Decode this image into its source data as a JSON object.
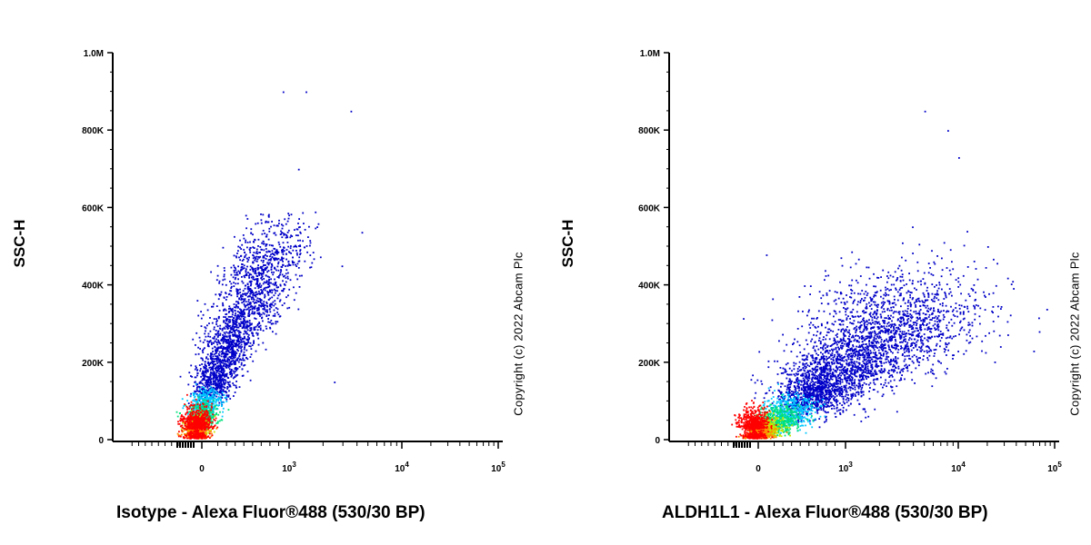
{
  "chart_data": [
    {
      "type": "scatter",
      "subtype": "flow-cytometry-density-dot-plot",
      "xlabel": "Isotype - Alexa Fluor®488 (530/30 BP)",
      "ylabel": "SSC-H",
      "copyright": "Copyright (c) 2022 Abcam Plc",
      "x_scale": "biexponential",
      "y_ticks": [
        "0",
        "200K",
        "400K",
        "600K",
        "800K",
        "1.0M"
      ],
      "x_ticks": [
        "0",
        "10^3",
        "10^4",
        "10^5"
      ],
      "ylim": [
        0,
        1000000
      ],
      "colormap": [
        "#0000c8",
        "#00c8ff",
        "#00e07a",
        "#c8e600",
        "#ff8c00",
        "#ff0000"
      ],
      "population": {
        "center_x": 0,
        "center_y": 40000,
        "spread": "narrow, extends diagonally to ~10^3 at ~600K",
        "outliers": [
          [
            600,
            900000
          ],
          [
            1400,
            900000
          ],
          [
            3500,
            850000
          ],
          [
            1200,
            700000
          ],
          [
            2500,
            150000
          ]
        ]
      }
    },
    {
      "type": "scatter",
      "subtype": "flow-cytometry-density-dot-plot",
      "xlabel": "ALDH1L1 - Alexa Fluor®488 (530/30 BP)",
      "ylabel": "SSC-H",
      "copyright": "Copyright (c) 2022 Abcam Plc",
      "x_scale": "biexponential",
      "y_ticks": [
        "0",
        "200K",
        "400K",
        "600K",
        "800K",
        "1.0M"
      ],
      "x_ticks": [
        "0",
        "10^3",
        "10^4",
        "10^5"
      ],
      "ylim": [
        0,
        1000000
      ],
      "colormap": [
        "#0000c8",
        "#00c8ff",
        "#00e07a",
        "#c8e600",
        "#ff8c00",
        "#ff0000"
      ],
      "population": {
        "center_x": 0,
        "center_y": 40000,
        "spread": "broad, extends to ~10^4 at ~300-600K",
        "outliers": [
          [
            5000,
            850000
          ],
          [
            8000,
            800000
          ],
          [
            10000,
            730000
          ],
          [
            20000,
            500000
          ],
          [
            60000,
            230000
          ]
        ]
      }
    }
  ]
}
